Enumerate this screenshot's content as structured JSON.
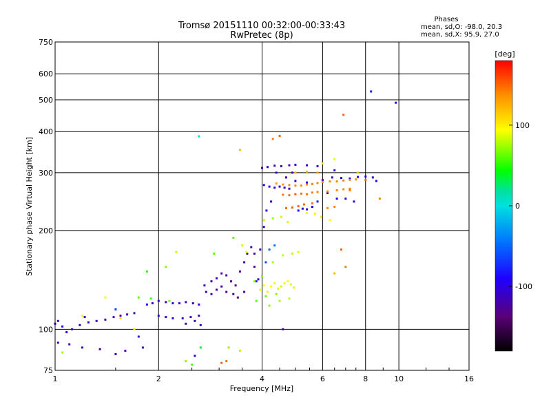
{
  "figure": {
    "title_line1": "Tromsø 20151110 00:32:00-00:33:43",
    "title_line2": "RwPretec (8p)",
    "phases": {
      "header": "Phases",
      "line_o": "mean, sd,O: -98.0, 20.3",
      "line_x": "mean, sd,X:  95.9, 27.0"
    }
  },
  "chart_data": {
    "type": "scatter",
    "xlabel": "Frequency [MHz]",
    "ylabel": "Stationary phase Virtual Height [km]",
    "x_scale": "log",
    "y_scale": "log",
    "xlim": [
      1,
      16
    ],
    "ylim": [
      75,
      750
    ],
    "x_ticks": [
      1,
      2,
      4,
      6,
      8,
      10,
      16
    ],
    "y_ticks": [
      75,
      100,
      200,
      300,
      400,
      500,
      600,
      750
    ],
    "grid": true,
    "colorbar": {
      "unit": "[deg]",
      "min": -180,
      "max": 180,
      "tick_values": [
        100,
        0,
        -100
      ],
      "colormap": "rainbow (black to purple to blue to cyan to green to yellow to orange to red)"
    },
    "series": [
      {
        "mode": "O",
        "color_by_phase_deg": true,
        "points": [
          [
            1.0,
            104,
            -110
          ],
          [
            1.02,
            106,
            -112
          ],
          [
            1.05,
            102,
            -108
          ],
          [
            1.08,
            98,
            -104
          ],
          [
            1.12,
            100,
            -110
          ],
          [
            1.18,
            103,
            -120
          ],
          [
            1.25,
            105,
            -115
          ],
          [
            1.32,
            106,
            -118
          ],
          [
            1.4,
            107,
            -112
          ],
          [
            1.48,
            109,
            -116
          ],
          [
            1.55,
            110,
            -120
          ],
          [
            1.62,
            111,
            -118
          ],
          [
            1.7,
            112,
            -116
          ],
          [
            1.02,
            91,
            -120
          ],
          [
            1.1,
            90,
            -118
          ],
          [
            1.2,
            88,
            -116
          ],
          [
            1.35,
            87,
            -120
          ],
          [
            1.5,
            84,
            -122
          ],
          [
            1.6,
            86,
            -118
          ],
          [
            1.8,
            88,
            -110
          ],
          [
            1.85,
            119,
            -100
          ],
          [
            1.92,
            120,
            -100
          ],
          [
            2.0,
            122,
            -105
          ],
          [
            2.1,
            121,
            -108
          ],
          [
            2.2,
            120,
            -104
          ],
          [
            2.3,
            120,
            -106
          ],
          [
            2.4,
            121,
            -108
          ],
          [
            2.52,
            120,
            -110
          ],
          [
            2.62,
            119,
            -106
          ],
          [
            2.0,
            110,
            -100
          ],
          [
            2.1,
            109,
            -104
          ],
          [
            2.2,
            108,
            -102
          ],
          [
            2.35,
            108,
            -106
          ],
          [
            2.48,
            109,
            -110
          ],
          [
            2.62,
            110,
            -112
          ],
          [
            2.72,
            136,
            -110
          ],
          [
            2.85,
            140,
            -115
          ],
          [
            2.95,
            143,
            -118
          ],
          [
            3.05,
            148,
            -120
          ],
          [
            3.15,
            146,
            -125
          ],
          [
            3.25,
            140,
            -130
          ],
          [
            3.35,
            136,
            -130
          ],
          [
            3.45,
            150,
            -128
          ],
          [
            3.55,
            160,
            -126
          ],
          [
            3.62,
            170,
            -120
          ],
          [
            3.72,
            178,
            -118
          ],
          [
            3.8,
            155,
            -125
          ],
          [
            3.9,
            142,
            -120
          ],
          [
            2.75,
            130,
            -110
          ],
          [
            2.85,
            128,
            -120
          ],
          [
            2.95,
            132,
            -122
          ],
          [
            3.05,
            135,
            -120
          ],
          [
            3.15,
            130,
            -128
          ],
          [
            3.3,
            128,
            -130
          ],
          [
            3.4,
            125,
            -132
          ],
          [
            3.55,
            130,
            -128
          ],
          [
            3.8,
            170,
            -115
          ],
          [
            3.95,
            175,
            -115
          ],
          [
            4.05,
            205,
            -110
          ],
          [
            4.12,
            230,
            -108
          ],
          [
            4.25,
            245,
            -106
          ],
          [
            4.05,
            275,
            -100
          ],
          [
            4.2,
            272,
            -100
          ],
          [
            4.35,
            270,
            -102
          ],
          [
            4.5,
            272,
            -104
          ],
          [
            4.65,
            270,
            -108
          ],
          [
            4.8,
            268,
            -110
          ],
          [
            4.0,
            310,
            -110
          ],
          [
            4.15,
            312,
            -112
          ],
          [
            4.35,
            315,
            -112
          ],
          [
            4.55,
            314,
            -110
          ],
          [
            4.8,
            316,
            -108
          ],
          [
            5.0,
            317,
            -104
          ],
          [
            5.4,
            316,
            -102
          ],
          [
            5.8,
            314,
            -104
          ],
          [
            6.0,
            285,
            -100
          ],
          [
            6.4,
            290,
            -98
          ],
          [
            6.8,
            289,
            -95
          ],
          [
            7.2,
            288,
            -92
          ],
          [
            7.6,
            291,
            -90
          ],
          [
            8.0,
            292,
            -92
          ],
          [
            8.4,
            290,
            -95
          ],
          [
            8.6,
            283,
            -98
          ],
          [
            4.4,
            300,
            -110
          ],
          [
            4.7,
            290,
            -108
          ],
          [
            5.0,
            283,
            -102
          ],
          [
            5.4,
            280,
            -100
          ],
          [
            8.3,
            530,
            -80
          ],
          [
            9.8,
            490,
            -100
          ],
          [
            4.0,
            145,
            -70
          ],
          [
            4.1,
            160,
            -60
          ],
          [
            4.2,
            175,
            -50
          ],
          [
            4.35,
            180,
            -45
          ],
          [
            3.85,
            140,
            -75
          ],
          [
            1.5,
            115,
            -70
          ],
          [
            1.22,
            109,
            -120
          ],
          [
            2.55,
            83,
            -110
          ],
          [
            4.6,
            100,
            -120
          ],
          [
            5.8,
            245,
            -80
          ],
          [
            6.2,
            260,
            -90
          ],
          [
            6.5,
            305,
            -105
          ],
          [
            5.1,
            230,
            -95
          ],
          [
            5.25,
            233,
            -100
          ],
          [
            5.4,
            232,
            -102
          ],
          [
            5.6,
            236,
            -98
          ],
          [
            6.6,
            250,
            -95
          ],
          [
            7.0,
            250,
            -92
          ],
          [
            7.4,
            245,
            -96
          ],
          [
            4.9,
            300,
            -110
          ],
          [
            2.4,
            104,
            -112
          ],
          [
            2.55,
            106,
            -110
          ],
          [
            2.65,
            103,
            -108
          ],
          [
            1.75,
            95,
            -110
          ]
        ]
      },
      {
        "mode": "X",
        "color_by_phase_deg": true,
        "points": [
          [
            4.4,
            278,
            130
          ],
          [
            4.6,
            276,
            135
          ],
          [
            4.8,
            275,
            140
          ],
          [
            5.0,
            274,
            140
          ],
          [
            5.2,
            274,
            138
          ],
          [
            5.4,
            276,
            140
          ],
          [
            5.6,
            277,
            142
          ],
          [
            5.8,
            279,
            140
          ],
          [
            6.0,
            281,
            140
          ],
          [
            6.3,
            282,
            138
          ],
          [
            6.6,
            282,
            140
          ],
          [
            6.9,
            284,
            142
          ],
          [
            7.2,
            285,
            140
          ],
          [
            7.5,
            286,
            138
          ],
          [
            4.6,
            257,
            145
          ],
          [
            4.8,
            256,
            150
          ],
          [
            5.0,
            258,
            152
          ],
          [
            5.2,
            259,
            148
          ],
          [
            5.4,
            258,
            146
          ],
          [
            5.6,
            261,
            140
          ],
          [
            5.8,
            262,
            140
          ],
          [
            6.2,
            263,
            142
          ],
          [
            6.6,
            265,
            140
          ],
          [
            6.9,
            267,
            138
          ],
          [
            7.2,
            268,
            140
          ],
          [
            4.7,
            234,
            150
          ],
          [
            4.9,
            235,
            152
          ],
          [
            5.1,
            237,
            150
          ],
          [
            5.3,
            240,
            148
          ],
          [
            5.6,
            242,
            145
          ],
          [
            6.2,
            234,
            140
          ],
          [
            6.5,
            236,
            138
          ],
          [
            5.0,
            300,
            120
          ],
          [
            5.4,
            302,
            125
          ],
          [
            5.8,
            300,
            130
          ],
          [
            6.0,
            320,
            100
          ],
          [
            6.5,
            330,
            90
          ],
          [
            4.3,
            380,
            140
          ],
          [
            6.9,
            450,
            150
          ],
          [
            3.95,
            132,
            90
          ],
          [
            4.05,
            136,
            95
          ],
          [
            4.15,
            130,
            90
          ],
          [
            4.25,
            135,
            92
          ],
          [
            4.35,
            138,
            90
          ],
          [
            4.45,
            133,
            88
          ],
          [
            4.55,
            135,
            85
          ],
          [
            4.65,
            138,
            90
          ],
          [
            4.75,
            140,
            92
          ],
          [
            4.85,
            137,
            88
          ],
          [
            4.95,
            134,
            86
          ],
          [
            4.2,
            118,
            70
          ],
          [
            4.5,
            122,
            75
          ],
          [
            4.8,
            124,
            80
          ],
          [
            3.8,
            140,
            70
          ],
          [
            4.0,
            145,
            72
          ],
          [
            4.3,
            160,
            75
          ],
          [
            4.6,
            168,
            80
          ],
          [
            4.9,
            170,
            82
          ],
          [
            5.1,
            172,
            85
          ],
          [
            3.85,
            122,
            60
          ],
          [
            4.1,
            126,
            65
          ],
          [
            4.4,
            128,
            68
          ],
          [
            3.5,
            180,
            85
          ],
          [
            3.6,
            172,
            90
          ],
          [
            4.05,
            215,
            80
          ],
          [
            4.3,
            218,
            75
          ],
          [
            4.55,
            220,
            82
          ],
          [
            4.75,
            212,
            85
          ],
          [
            5.4,
            226,
            95
          ],
          [
            5.7,
            225,
            100
          ],
          [
            5.95,
            220,
            105
          ],
          [
            6.3,
            215,
            90
          ],
          [
            1.05,
            85,
            75
          ],
          [
            1.75,
            125,
            60
          ],
          [
            1.9,
            124,
            55
          ],
          [
            2.15,
            122,
            65
          ],
          [
            2.4,
            80,
            70
          ],
          [
            2.5,
            78,
            60
          ],
          [
            2.65,
            88,
            40
          ],
          [
            3.05,
            79,
            150
          ],
          [
            3.15,
            80,
            145
          ],
          [
            3.45,
            86,
            80
          ],
          [
            2.62,
            387,
            10
          ],
          [
            3.45,
            352,
            120
          ],
          [
            4.5,
            388,
            150
          ],
          [
            2.1,
            155,
            70
          ],
          [
            1.85,
            150,
            50
          ],
          [
            1.4,
            125,
            90
          ],
          [
            1.2,
            110,
            100
          ],
          [
            1.55,
            108,
            110
          ],
          [
            1.7,
            100,
            100
          ],
          [
            2.9,
            170,
            60
          ],
          [
            3.3,
            190,
            60
          ],
          [
            3.2,
            88,
            70
          ],
          [
            2.25,
            172,
            80
          ],
          [
            7.0,
            155,
            140
          ],
          [
            6.5,
            148,
            120
          ],
          [
            6.8,
            175,
            150
          ],
          [
            8.0,
            285,
            150
          ],
          [
            7.2,
            265,
            145
          ],
          [
            7.6,
            300,
            120
          ],
          [
            8.8,
            250,
            140
          ]
        ]
      }
    ]
  }
}
